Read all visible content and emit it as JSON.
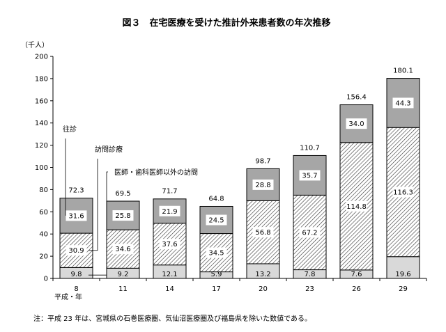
{
  "chart_data": {
    "type": "bar",
    "stacked": true,
    "title": "図３　在宅医療を受けた推計外来患者数の年次推移",
    "ylabel": "（千人）",
    "xlabel": "平成・年",
    "categories": [
      "8",
      "11",
      "14",
      "17",
      "20",
      "23",
      "26",
      "29"
    ],
    "ylim": [
      0,
      200
    ],
    "yticks": [
      0,
      20,
      40,
      60,
      80,
      100,
      120,
      140,
      160,
      180,
      200
    ],
    "totals": [
      72.3,
      69.5,
      71.7,
      64.8,
      98.7,
      110.7,
      156.4,
      180.1
    ],
    "series": [
      {
        "name": "医師・歯科医師以外の訪問",
        "values": [
          9.8,
          9.2,
          12.1,
          5.9,
          13.2,
          7.8,
          7.6,
          19.6
        ],
        "fill": "#d9d9d9"
      },
      {
        "name": "訪問診療",
        "values": [
          30.9,
          34.6,
          37.6,
          34.5,
          56.8,
          67.2,
          114.8,
          116.3
        ],
        "fill": "hatch"
      },
      {
        "name": "往診",
        "values": [
          31.6,
          25.8,
          21.9,
          24.5,
          28.8,
          35.7,
          34.0,
          44.3
        ],
        "fill": "#a6a6a6"
      }
    ],
    "grid": false
  },
  "note": "注：平成 23 年は、宮城県の石巻医療圏、気仙沼医療圏及び福島県を除いた数値である。"
}
